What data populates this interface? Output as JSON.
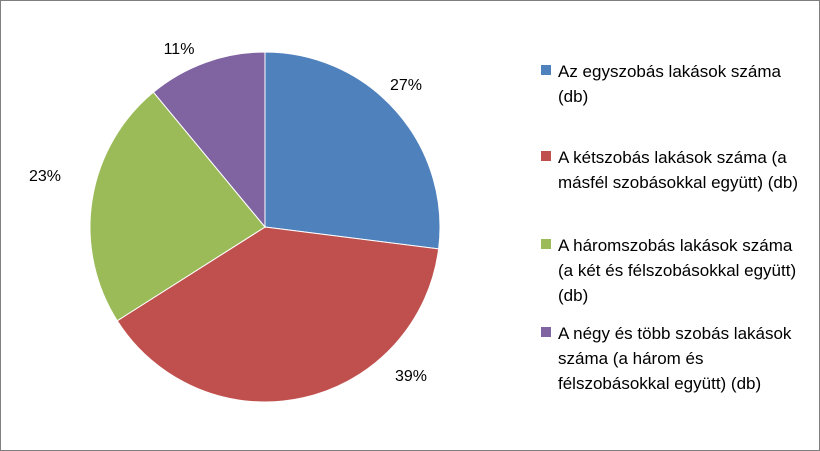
{
  "chart_data": {
    "type": "pie",
    "slices": [
      {
        "label": "Az egyszobás lakások száma (db)",
        "percent_label": "27%",
        "value": 27,
        "color": "#4f81bd"
      },
      {
        "label": "A kétszobás lakások száma (a másfél szobásokkal együtt) (db)",
        "percent_label": "39%",
        "value": 39,
        "color": "#c0504d"
      },
      {
        "label": "A háromszobás lakások száma (a két és félszobásokkal együtt) (db)",
        "percent_label": "23%",
        "value": 23,
        "color": "#9bbb59"
      },
      {
        "label": "A négy és több szobás lakások száma (a három és félszobásokkal együtt) (db)",
        "percent_label": "11%",
        "value": 11,
        "color": "#8064a2"
      }
    ],
    "legend_position": "right",
    "start": "12 o'clock, clockwise"
  }
}
